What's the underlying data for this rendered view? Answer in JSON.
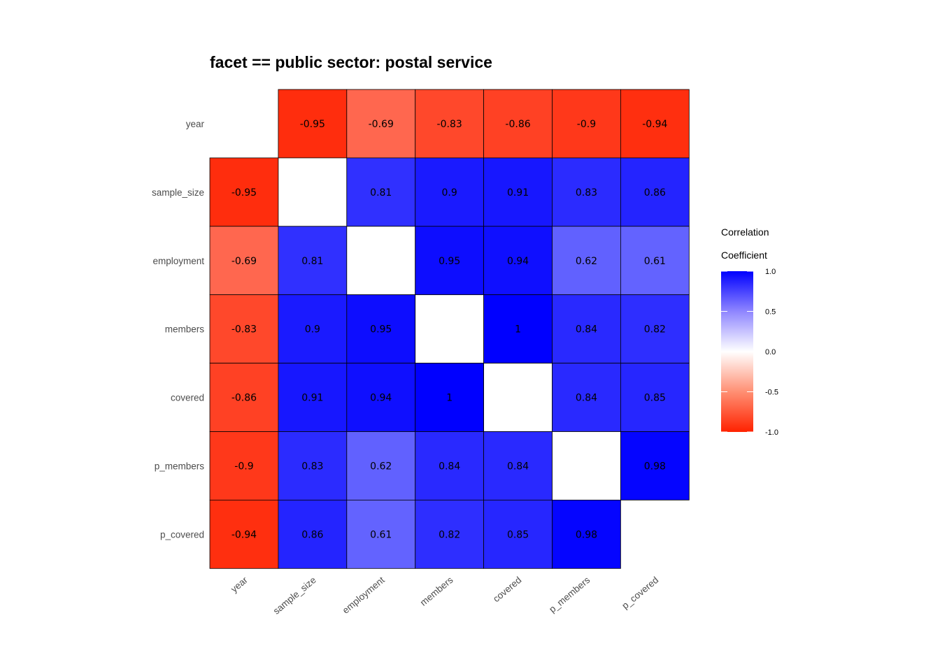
{
  "chart_data": {
    "type": "heatmap",
    "title": "facet == public sector: postal service",
    "variables": [
      "year",
      "sample_size",
      "employment",
      "members",
      "covered",
      "p_members",
      "p_covered"
    ],
    "matrix": [
      [
        null,
        -0.95,
        -0.69,
        -0.83,
        -0.86,
        -0.9,
        -0.94
      ],
      [
        -0.95,
        null,
        0.81,
        0.9,
        0.91,
        0.83,
        0.86
      ],
      [
        -0.69,
        0.81,
        null,
        0.95,
        0.94,
        0.62,
        0.61
      ],
      [
        -0.83,
        0.9,
        0.95,
        null,
        1,
        0.84,
        0.82
      ],
      [
        -0.86,
        0.91,
        0.94,
        1,
        null,
        0.84,
        0.85
      ],
      [
        -0.9,
        0.83,
        0.62,
        0.84,
        0.84,
        null,
        0.98
      ],
      [
        -0.94,
        0.86,
        0.61,
        0.82,
        0.85,
        0.98,
        null
      ]
    ],
    "labels": [
      [
        null,
        "-0.95",
        "-0.69",
        "-0.83",
        "-0.86",
        "-0.9",
        "-0.94"
      ],
      [
        "-0.95",
        null,
        "0.81",
        "0.9",
        "0.91",
        "0.83",
        "0.86"
      ],
      [
        "-0.69",
        "0.81",
        null,
        "0.95",
        "0.94",
        "0.62",
        "0.61"
      ],
      [
        "-0.83",
        "0.9",
        "0.95",
        null,
        "1",
        "0.84",
        "0.82"
      ],
      [
        "-0.86",
        "0.91",
        "0.94",
        "1",
        null,
        "0.84",
        "0.85"
      ],
      [
        "-0.9",
        "0.83",
        "0.62",
        "0.84",
        "0.84",
        null,
        "0.98"
      ],
      [
        "-0.94",
        "0.86",
        "0.61",
        "0.82",
        "0.85",
        "0.98",
        null
      ]
    ],
    "legend": {
      "title_line1": "Correlation",
      "title_line2": "Coefficient",
      "range": [
        -1,
        1
      ],
      "ticks": [
        1.0,
        0.5,
        0.0,
        -0.5,
        -1.0
      ],
      "tick_labels": [
        "1.0",
        "0.5",
        "0.0",
        "-0.5",
        "-1.0"
      ],
      "placement": "right"
    },
    "colors": {
      "low": "#ff2200",
      "mid": "#ffffff",
      "high": "#0000ff",
      "cell_border": "#000000",
      "axis_text": "#4d4d4d"
    }
  }
}
